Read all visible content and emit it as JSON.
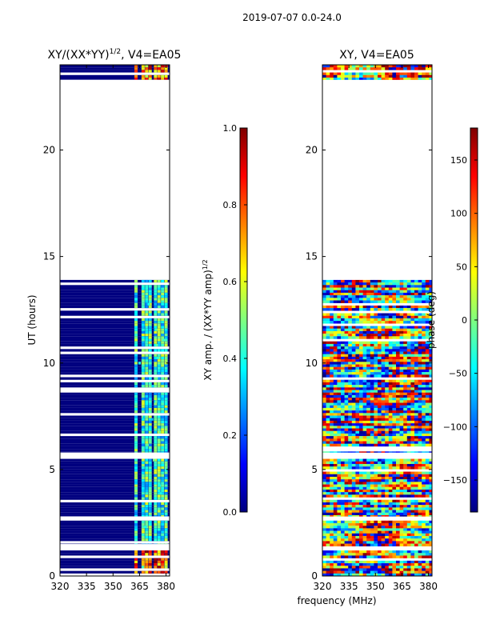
{
  "figure": {
    "suptitle": "2019-07-07 0.0-24.0",
    "shared_xlabel": "frequency (MHz)"
  },
  "colors": {
    "jet": [
      "#00007f",
      "#0000ff",
      "#007fff",
      "#00ffff",
      "#7fff7f",
      "#ffff00",
      "#ff7f00",
      "#ff0000",
      "#7f0000"
    ],
    "empty": "#ffffff",
    "frame": "#000000"
  },
  "chart_data": [
    {
      "type": "heatmap",
      "title_main": "XY/(XX*YY)",
      "title_sup": "1/2",
      "title_tail": ", V4=EA05",
      "xlabel": "",
      "ylabel": "UT (hours)",
      "xlim": [
        320,
        382
      ],
      "ylim": [
        0,
        24
      ],
      "xticks": [
        320,
        335,
        350,
        365,
        380
      ],
      "xtick_labels": [
        "320",
        "335",
        "350",
        "365",
        "380"
      ],
      "yticks": [
        0,
        5,
        10,
        15,
        20
      ],
      "ytick_labels": [
        "0",
        "5",
        "10",
        "15",
        "20"
      ],
      "bright_channels_mhz": [
        363,
        367,
        369,
        371,
        374,
        376,
        378,
        380
      ],
      "data_hours": [
        [
          0.0,
          1.2
        ],
        [
          1.5,
          2.6
        ],
        [
          2.8,
          5.5
        ],
        [
          5.8,
          13.9
        ],
        [
          23.3,
          24.0
        ]
      ],
      "colorbar": {
        "label": "XY amp. / (XX*YY amp)",
        "label_sup": "1/2",
        "range": [
          0.0,
          1.0
        ],
        "ticks": [
          0.0,
          0.2,
          0.4,
          0.6,
          0.8,
          1.0
        ],
        "tick_labels": [
          "0.0",
          "0.2",
          "0.4",
          "0.6",
          "0.8",
          "1.0"
        ]
      }
    },
    {
      "type": "heatmap",
      "title_main": "XY, V4=EA05",
      "xlabel": "frequency (MHz)",
      "ylabel": "",
      "xlim": [
        320,
        382
      ],
      "ylim": [
        0,
        24
      ],
      "xticks": [
        320,
        335,
        350,
        365,
        380
      ],
      "xtick_labels": [
        "320",
        "335",
        "350",
        "365",
        "380"
      ],
      "yticks": [
        0,
        5,
        10,
        15,
        20
      ],
      "ytick_labels": [
        "0",
        "5",
        "10",
        "15",
        "20"
      ],
      "data_hours": [
        [
          0.0,
          1.2
        ],
        [
          1.4,
          2.6
        ],
        [
          2.8,
          5.5
        ],
        [
          5.8,
          13.9
        ],
        [
          23.3,
          24.0
        ]
      ],
      "colorbar": {
        "label": "phase (deg)",
        "range": [
          -180,
          180
        ],
        "ticks": [
          -150,
          -100,
          -50,
          0,
          50,
          100,
          150
        ],
        "tick_labels": [
          "−150",
          "−100",
          "−50",
          "0",
          "50",
          "100",
          "150"
        ]
      }
    }
  ]
}
